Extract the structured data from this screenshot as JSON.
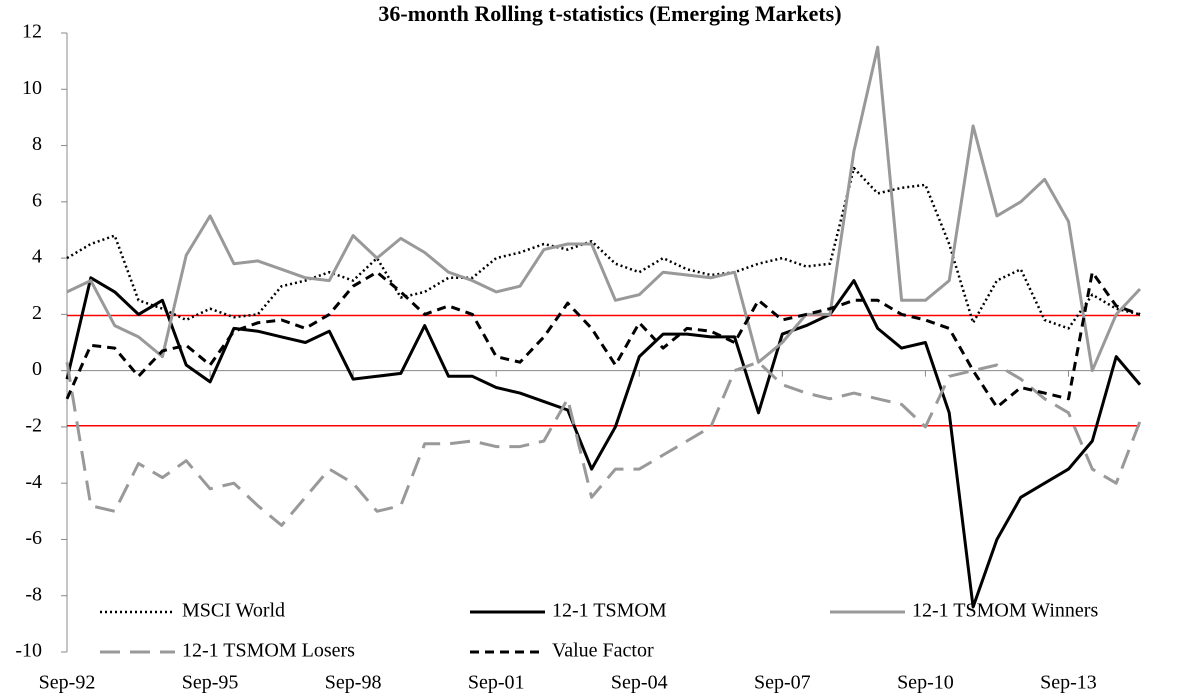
{
  "chart_data": {
    "type": "line",
    "title": "36-month Rolling t-statistics (Emerging Markets)",
    "categories": [
      "Sep-92",
      null,
      null,
      null,
      null,
      null,
      "Sep-95",
      null,
      null,
      null,
      null,
      null,
      "Sep-98",
      null,
      null,
      null,
      null,
      null,
      "Sep-01",
      null,
      null,
      null,
      null,
      null,
      "Sep-04",
      null,
      null,
      null,
      null,
      null,
      "Sep-07",
      null,
      null,
      null,
      null,
      null,
      "Sep-10",
      null,
      null,
      null,
      null,
      null,
      "Sep-13",
      null,
      null,
      null
    ],
    "ylim": [
      -10,
      12
    ],
    "yticks": [
      -10,
      -8,
      -6,
      -4,
      -2,
      0,
      2,
      4,
      6,
      8,
      10,
      12
    ],
    "reference_lines": [
      1.96,
      -1.96
    ],
    "reference_color": "#ff0000",
    "series": [
      {
        "name": "MSCI World",
        "color": "#000000",
        "dash": "dotted",
        "values": [
          4.0,
          4.5,
          4.8,
          2.5,
          2.2,
          1.8,
          2.2,
          1.9,
          2.0,
          3.0,
          3.2,
          3.5,
          3.2,
          4.0,
          2.6,
          2.8,
          3.3,
          3.3,
          4.0,
          4.2,
          4.5,
          4.3,
          4.6,
          3.8,
          3.5,
          4.0,
          3.6,
          3.4,
          3.5,
          3.8,
          4.0,
          3.7,
          3.8,
          7.2,
          6.3,
          6.5,
          6.6,
          4.5,
          1.7,
          3.2,
          3.6,
          1.8,
          1.5,
          2.7,
          2.2,
          2.0
        ]
      },
      {
        "name": "12-1 TSMOM",
        "color": "#000000",
        "dash": "solid",
        "values": [
          -0.3,
          3.3,
          2.8,
          2.0,
          2.5,
          0.2,
          -0.4,
          1.5,
          1.4,
          1.2,
          1.0,
          1.4,
          -0.3,
          -0.2,
          -0.1,
          1.6,
          -0.2,
          -0.2,
          -0.6,
          -0.8,
          -1.1,
          -1.4,
          -3.5,
          -2.0,
          0.5,
          1.3,
          1.3,
          1.2,
          1.2,
          -1.5,
          1.3,
          1.6,
          2.0,
          3.2,
          1.5,
          0.8,
          1.0,
          -1.5,
          -8.4,
          -6.0,
          -4.5,
          -4.0,
          -3.5,
          -2.5,
          0.5,
          -0.5
        ]
      },
      {
        "name": "12-1 TSMOM Winners",
        "color": "#999999",
        "dash": "solid",
        "values": [
          2.8,
          3.2,
          1.6,
          1.2,
          0.5,
          4.1,
          5.5,
          3.8,
          3.9,
          3.6,
          3.3,
          3.2,
          4.8,
          4.0,
          4.7,
          4.2,
          3.5,
          3.2,
          2.8,
          3.0,
          4.3,
          4.5,
          4.5,
          2.5,
          2.7,
          3.5,
          3.4,
          3.3,
          3.5,
          0.3,
          1.0,
          2.0,
          2.0,
          7.8,
          11.5,
          2.5,
          2.5,
          3.2,
          8.7,
          5.5,
          6.0,
          6.8,
          5.3,
          0.0,
          2.0,
          2.9
        ]
      },
      {
        "name": "12-1 TSMOM Losers",
        "color": "#999999",
        "dash": "long-dash",
        "values": [
          0.3,
          -4.8,
          -5.0,
          -3.3,
          -3.8,
          -3.2,
          -4.2,
          -4.0,
          -4.8,
          -5.5,
          -4.5,
          -3.5,
          -4.0,
          -5.0,
          -4.8,
          -2.6,
          -2.6,
          -2.5,
          -2.7,
          -2.7,
          -2.5,
          -1.0,
          -4.5,
          -3.5,
          -3.5,
          -3.0,
          -2.5,
          -2.0,
          0.0,
          0.3,
          -0.5,
          -0.8,
          -1.0,
          -0.8,
          -1.0,
          -1.2,
          -2.0,
          -0.2,
          0.0,
          0.2,
          -0.3,
          -1.0,
          -1.5,
          -3.5,
          -4.0,
          -1.8
        ]
      },
      {
        "name": "Value Factor",
        "color": "#000000",
        "dash": "dash",
        "values": [
          -1.0,
          0.9,
          0.8,
          -0.2,
          0.7,
          0.9,
          0.2,
          1.4,
          1.7,
          1.8,
          1.5,
          2.0,
          3.0,
          3.5,
          2.8,
          2.0,
          2.3,
          2.0,
          0.5,
          0.3,
          1.2,
          2.4,
          1.5,
          0.2,
          1.7,
          0.8,
          1.5,
          1.4,
          1.0,
          2.5,
          1.8,
          2.0,
          2.2,
          2.5,
          2.5,
          2.0,
          1.8,
          1.5,
          0.0,
          -1.3,
          -0.6,
          -0.8,
          -1.0,
          3.5,
          2.3,
          2.0
        ]
      }
    ]
  }
}
